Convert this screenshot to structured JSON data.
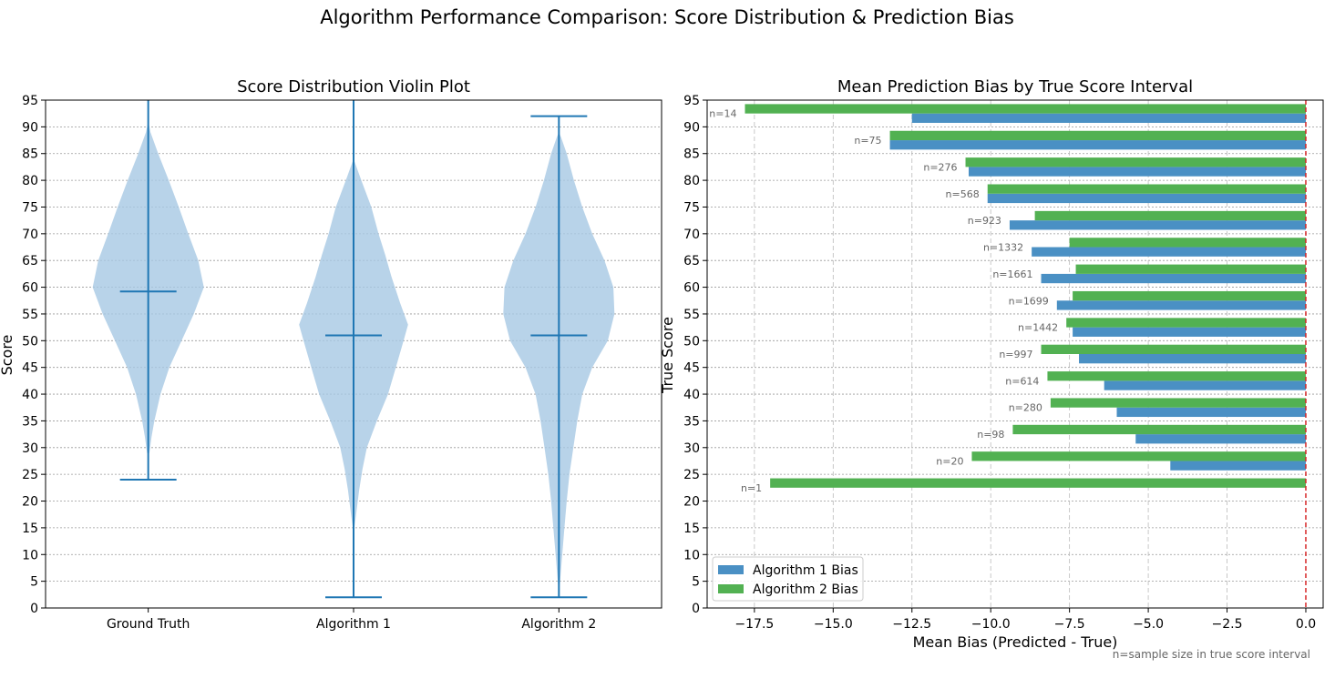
{
  "figure": {
    "title": "Algorithm Performance Comparison: Score Distribution & Prediction Bias",
    "note": "n=sample size in true score interval"
  },
  "colors": {
    "violin_fill": "#a6c8e3",
    "violin_line": "#1f77b4",
    "algo1": "#4a90c4",
    "algo2": "#52b152",
    "zero_line": "#d62728",
    "grid": "#999999",
    "n_label": "#666666"
  },
  "chart_data": [
    {
      "type": "violin",
      "title": "Score Distribution Violin Plot",
      "xlabel": "",
      "ylabel": "Score",
      "ylim": [
        0,
        95
      ],
      "yticks": [
        0,
        5,
        10,
        15,
        20,
        25,
        30,
        35,
        40,
        45,
        50,
        55,
        60,
        65,
        70,
        75,
        80,
        85,
        90,
        95
      ],
      "grid": "y",
      "categories": [
        "Ground Truth",
        "Algorithm 1",
        "Algorithm 2"
      ],
      "series": [
        {
          "min": 24,
          "max": 98,
          "mean": 59.2,
          "density": [
            [
              29,
              0.02
            ],
            [
              32,
              0.06
            ],
            [
              35,
              0.11
            ],
            [
              40,
              0.22
            ],
            [
              45,
              0.38
            ],
            [
              50,
              0.6
            ],
            [
              55,
              0.82
            ],
            [
              60,
              1.0
            ],
            [
              65,
              0.9
            ],
            [
              70,
              0.72
            ],
            [
              75,
              0.55
            ],
            [
              80,
              0.37
            ],
            [
              85,
              0.18
            ],
            [
              89,
              0.04
            ],
            [
              91,
              0.0
            ]
          ]
        },
        {
          "min": 2,
          "max": 98,
          "mean": 51.0,
          "density": [
            [
              14,
              0.0
            ],
            [
              17,
              0.04
            ],
            [
              22,
              0.1
            ],
            [
              26,
              0.16
            ],
            [
              30,
              0.24
            ],
            [
              35,
              0.42
            ],
            [
              40,
              0.62
            ],
            [
              45,
              0.76
            ],
            [
              50,
              0.9
            ],
            [
              53,
              0.98
            ],
            [
              57,
              0.84
            ],
            [
              62,
              0.68
            ],
            [
              66,
              0.57
            ],
            [
              70,
              0.45
            ],
            [
              75,
              0.32
            ],
            [
              80,
              0.14
            ],
            [
              84,
              0.0
            ]
          ]
        },
        {
          "min": 2,
          "max": 92,
          "mean": 51.0,
          "density": [
            [
              3,
              0.0
            ],
            [
              5,
              0.02
            ],
            [
              10,
              0.06
            ],
            [
              15,
              0.1
            ],
            [
              20,
              0.14
            ],
            [
              25,
              0.19
            ],
            [
              30,
              0.26
            ],
            [
              35,
              0.33
            ],
            [
              40,
              0.42
            ],
            [
              45,
              0.6
            ],
            [
              50,
              0.88
            ],
            [
              55,
              1.0
            ],
            [
              60,
              0.98
            ],
            [
              65,
              0.82
            ],
            [
              70,
              0.6
            ],
            [
              75,
              0.42
            ],
            [
              80,
              0.27
            ],
            [
              85,
              0.14
            ],
            [
              88,
              0.04
            ],
            [
              89,
              0.0
            ]
          ]
        }
      ]
    },
    {
      "type": "bar",
      "orientation": "horizontal",
      "title": "Mean Prediction Bias by True Score Interval",
      "xlabel": "Mean Bias (Predicted - True)",
      "ylabel": "True Score",
      "xlim": [
        -19.0,
        0.55
      ],
      "ylim": [
        0,
        95
      ],
      "xticks": [
        -17.5,
        -15.0,
        -12.5,
        -10.0,
        -7.5,
        -5.0,
        -2.5,
        0.0
      ],
      "xtick_labels": [
        "−17.5",
        "−15.0",
        "−12.5",
        "−10.0",
        "−7.5",
        "−5.0",
        "−2.5",
        "0.0"
      ],
      "yticks": [
        0,
        5,
        10,
        15,
        20,
        25,
        30,
        35,
        40,
        45,
        50,
        55,
        60,
        65,
        70,
        75,
        80,
        85,
        90,
        95
      ],
      "grid": "both",
      "legend": "lower-left",
      "reference_line": 0,
      "interval_centers": [
        92.5,
        87.5,
        82.5,
        77.5,
        72.5,
        67.5,
        62.5,
        57.5,
        52.5,
        47.5,
        42.5,
        37.5,
        32.5,
        27.5,
        22.5
      ],
      "n_labels": [
        "n=14",
        "n=75",
        "n=276",
        "n=568",
        "n=923",
        "n=1332",
        "n=1661",
        "n=1699",
        "n=1442",
        "n=997",
        "n=614",
        "n=280",
        "n=98",
        "n=20",
        "n=1"
      ],
      "series": [
        {
          "name": "Algorithm 1 Bias",
          "values": [
            -12.5,
            -13.2,
            -10.7,
            -10.1,
            -9.4,
            -8.7,
            -8.4,
            -7.9,
            -7.4,
            -7.2,
            -6.4,
            -6.0,
            -5.4,
            -4.3,
            null
          ]
        },
        {
          "name": "Algorithm 2 Bias",
          "values": [
            -17.8,
            -13.2,
            -10.8,
            -10.1,
            -8.6,
            -7.5,
            -7.3,
            -7.4,
            -7.6,
            -8.4,
            -8.2,
            -8.1,
            -9.3,
            -10.6,
            -17.0
          ]
        }
      ]
    }
  ]
}
